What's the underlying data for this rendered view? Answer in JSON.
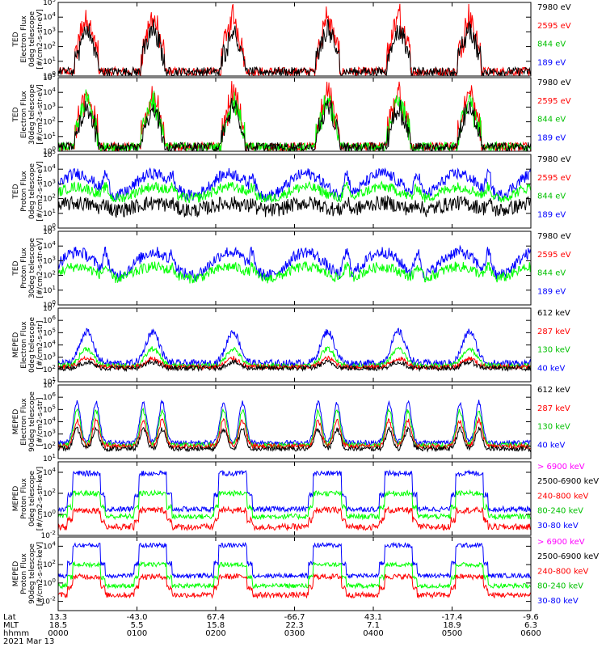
{
  "colors": {
    "black": "#000000",
    "red": "#ff0000",
    "green": "#00ff00",
    "blue": "#0000ff",
    "magenta": "#ff00ff",
    "text_blue": "#0000ff",
    "text_green": "#00c000"
  },
  "chart_data": [
    {
      "type": "line",
      "title_lines": [
        "TED",
        "Electron Flux",
        "0deg telescope",
        "[#/cm2-s-str-eV]"
      ],
      "ylim_exp": [
        0,
        5
      ],
      "ytick_exps": [
        0,
        1,
        2,
        3,
        4,
        5
      ],
      "legend": [
        {
          "label": "7980 eV",
          "color": "#000000"
        },
        {
          "label": "2595 eV",
          "color": "#ff0000"
        },
        {
          "label": "844 eV",
          "color": "#00c000"
        },
        {
          "label": "189 eV",
          "color": "#0000ff"
        }
      ],
      "series": [
        {
          "color": "#ff0000",
          "level": 1.2,
          "amp": 2.8,
          "noise": 0.6
        },
        {
          "color": "#000000",
          "level": 0.9,
          "amp": 2.2,
          "noise": 0.4
        }
      ],
      "mode": "bursts",
      "bursts": [
        0.06,
        0.2,
        0.37,
        0.57,
        0.72,
        0.87
      ]
    },
    {
      "type": "line",
      "title_lines": [
        "TED",
        "Electron Flux",
        "30deg telescope",
        "[#/cm2-s-str-eV]"
      ],
      "ylim_exp": [
        0,
        5
      ],
      "ytick_exps": [
        0,
        1,
        2,
        3,
        4,
        5
      ],
      "legend": [
        {
          "label": "7980 eV",
          "color": "#000000"
        },
        {
          "label": "2595 eV",
          "color": "#ff0000"
        },
        {
          "label": "844 eV",
          "color": "#00c000"
        },
        {
          "label": "189 eV",
          "color": "#0000ff"
        }
      ],
      "series": [
        {
          "color": "#ff0000",
          "level": 1.0,
          "amp": 3.0,
          "noise": 0.6
        },
        {
          "color": "#00ff00",
          "level": 0.9,
          "amp": 2.5,
          "noise": 0.5
        },
        {
          "color": "#000000",
          "level": 0.7,
          "amp": 2.3,
          "noise": 0.4
        }
      ],
      "mode": "bursts",
      "bursts": [
        0.06,
        0.2,
        0.37,
        0.57,
        0.72,
        0.87
      ]
    },
    {
      "type": "line",
      "title_lines": [
        "TED",
        "Proton Flux",
        "0deg telescope",
        "[#/cm2-s-str-eV]"
      ],
      "ylim_exp": [
        0,
        5
      ],
      "ytick_exps": [
        0,
        1,
        2,
        3,
        4,
        5
      ],
      "legend": [
        {
          "label": "7980 eV",
          "color": "#000000"
        },
        {
          "label": "2595 eV",
          "color": "#ff0000"
        },
        {
          "label": "844 eV",
          "color": "#00c000"
        },
        {
          "label": "189 eV",
          "color": "#0000ff"
        }
      ],
      "series": [
        {
          "color": "#000000",
          "level": 1.2,
          "amp": 0.5,
          "noise": 0.5
        },
        {
          "color": "#0000ff",
          "level": 2.2,
          "amp": 1.5,
          "noise": 0.4
        },
        {
          "color": "#00ff00",
          "level": 2.0,
          "amp": 0.8,
          "noise": 0.35
        }
      ],
      "mode": "arches",
      "bursts": [
        0.06,
        0.2,
        0.37,
        0.57,
        0.72,
        0.87
      ]
    },
    {
      "type": "line",
      "title_lines": [
        "TED",
        "Proton Flux",
        "30deg telescope",
        "[#/cm2-s-str-eV]"
      ],
      "ylim_exp": [
        0,
        5
      ],
      "ytick_exps": [
        0,
        1,
        2,
        3,
        4,
        5
      ],
      "legend": [
        {
          "label": "7980 eV",
          "color": "#000000"
        },
        {
          "label": "2595 eV",
          "color": "#ff0000"
        },
        {
          "label": "844 eV",
          "color": "#00c000"
        },
        {
          "label": "189 eV",
          "color": "#0000ff"
        }
      ],
      "series": [
        {
          "color": "#0000ff",
          "level": 2.0,
          "amp": 1.6,
          "noise": 0.4
        },
        {
          "color": "#00ff00",
          "level": 1.8,
          "amp": 0.8,
          "noise": 0.35
        }
      ],
      "mode": "arches",
      "bursts": [
        0.06,
        0.2,
        0.37,
        0.57,
        0.72,
        0.87
      ]
    },
    {
      "type": "line",
      "title_lines": [
        "MEPED",
        "Electron Flux",
        "0deg telescope",
        "[#/cm2-s-str]"
      ],
      "ylim_exp": [
        1,
        7
      ],
      "ytick_exps": [
        1,
        2,
        3,
        4,
        5,
        6,
        7
      ],
      "legend": [
        {
          "label": "612 keV",
          "color": "#000000"
        },
        {
          "label": "287 keV",
          "color": "#ff0000"
        },
        {
          "label": "130 keV",
          "color": "#00c000"
        },
        {
          "label": "40 keV",
          "color": "#0000ff"
        }
      ],
      "series": [
        {
          "color": "#0000ff",
          "level": 2.5,
          "amp": 2.6,
          "noise": 0.3
        },
        {
          "color": "#00ff00",
          "level": 2.3,
          "amp": 1.4,
          "noise": 0.2
        },
        {
          "color": "#ff0000",
          "level": 2.2,
          "amp": 0.7,
          "noise": 0.2
        },
        {
          "color": "#000000",
          "level": 2.1,
          "amp": 0.5,
          "noise": 0.2
        }
      ],
      "mode": "spikes",
      "bursts": [
        0.06,
        0.2,
        0.37,
        0.57,
        0.72,
        0.87
      ]
    },
    {
      "type": "line",
      "title_lines": [
        "MEPED",
        "Electron Flux",
        "90deg telescope",
        "[#/cm2-s-str]"
      ],
      "ylim_exp": [
        1,
        7
      ],
      "ytick_exps": [
        1,
        2,
        3,
        4,
        5,
        6,
        7
      ],
      "legend": [
        {
          "label": "612 keV",
          "color": "#000000"
        },
        {
          "label": "287 keV",
          "color": "#ff0000"
        },
        {
          "label": "130 keV",
          "color": "#00c000"
        },
        {
          "label": "40 keV",
          "color": "#0000ff"
        }
      ],
      "series": [
        {
          "color": "#0000ff",
          "level": 2.3,
          "amp": 3.3,
          "noise": 0.2
        },
        {
          "color": "#00ff00",
          "level": 2.1,
          "amp": 2.8,
          "noise": 0.2
        },
        {
          "color": "#ff0000",
          "level": 2.0,
          "amp": 2.1,
          "noise": 0.2
        },
        {
          "color": "#000000",
          "level": 1.8,
          "amp": 1.6,
          "noise": 0.2
        }
      ],
      "mode": "double",
      "bursts": [
        0.06,
        0.2,
        0.37,
        0.57,
        0.72,
        0.87
      ]
    },
    {
      "type": "line",
      "title_lines": [
        "MEPED",
        "Proton Flux",
        "0deg telescope",
        "[#/cm2-s-str-keV]"
      ],
      "ylim_exp": [
        -2,
        5
      ],
      "ytick_exps": [
        -2,
        0,
        2,
        4
      ],
      "legend": [
        {
          "label": "> 6900 keV",
          "color": "#ff00ff"
        },
        {
          "label": "2500-6900 keV",
          "color": "#000000"
        },
        {
          "label": "240-800 keV",
          "color": "#ff0000"
        },
        {
          "label": "80-240 keV",
          "color": "#00c000"
        },
        {
          "label": "30-80 keV",
          "color": "#0000ff"
        }
      ],
      "series": [
        {
          "color": "#0000ff",
          "level": 0.5,
          "amp": 3.4,
          "noise": 0.25
        },
        {
          "color": "#00ff00",
          "level": -0.2,
          "amp": 2.2,
          "noise": 0.25
        },
        {
          "color": "#ff0000",
          "level": -1.2,
          "amp": 1.6,
          "noise": 0.3
        }
      ],
      "mode": "blocks",
      "bursts": [
        0.06,
        0.2,
        0.37,
        0.57,
        0.72,
        0.87
      ]
    },
    {
      "type": "line",
      "title_lines": [
        "MEPED",
        "Proton Flux",
        "90deg telescope",
        "[#/cm2-s-str-keV]"
      ],
      "ylim_exp": [
        -3,
        5
      ],
      "ytick_exps": [
        -2,
        0,
        2,
        4
      ],
      "legend": [
        {
          "label": "> 6900 keV",
          "color": "#ff00ff"
        },
        {
          "label": "2500-6900 keV",
          "color": "#000000"
        },
        {
          "label": "240-800 keV",
          "color": "#ff0000"
        },
        {
          "label": "80-240 keV",
          "color": "#00c000"
        },
        {
          "label": "30-80 keV",
          "color": "#0000ff"
        }
      ],
      "series": [
        {
          "color": "#0000ff",
          "level": 0.8,
          "amp": 3.3,
          "noise": 0.25
        },
        {
          "color": "#00ff00",
          "level": -0.3,
          "amp": 2.3,
          "noise": 0.25
        },
        {
          "color": "#ff0000",
          "level": -1.3,
          "amp": 2.0,
          "noise": 0.3
        }
      ],
      "mode": "blocks",
      "bursts": [
        0.06,
        0.2,
        0.37,
        0.57,
        0.72,
        0.87
      ]
    }
  ],
  "x_axis": {
    "row_labels": [
      "Lat",
      "MLT",
      "hhmm"
    ],
    "columns": [
      {
        "frac": 0.0,
        "lat": "13.3",
        "mlt": "18.5",
        "hhmm": "0000"
      },
      {
        "frac": 0.1667,
        "lat": "-43.0",
        "mlt": "5.5",
        "hhmm": "0100"
      },
      {
        "frac": 0.3333,
        "lat": "67.4",
        "mlt": "15.8",
        "hhmm": "0200"
      },
      {
        "frac": 0.5,
        "lat": "-66.7",
        "mlt": "22.3",
        "hhmm": "0300"
      },
      {
        "frac": 0.6667,
        "lat": "43.1",
        "mlt": "7.1",
        "hhmm": "0400"
      },
      {
        "frac": 0.8333,
        "lat": "-17.4",
        "mlt": "18.9",
        "hhmm": "0500"
      },
      {
        "frac": 1.0,
        "lat": "-9.6",
        "mlt": "6.3",
        "hhmm": "0600"
      }
    ],
    "date": "2021 Mar 13"
  }
}
